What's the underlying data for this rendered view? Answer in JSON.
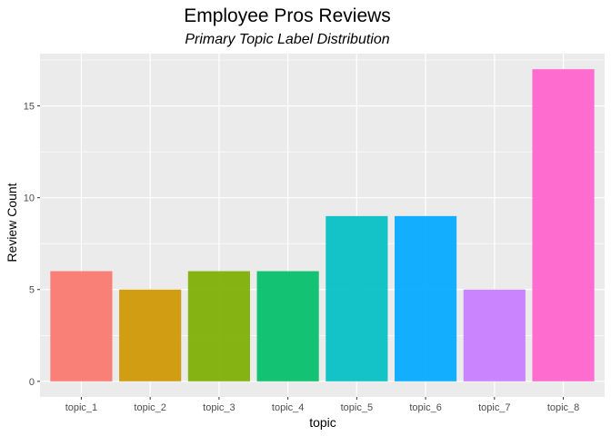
{
  "chart_data": {
    "type": "bar",
    "title": "Employee Pros Reviews",
    "subtitle": "Primary Topic Label Distribution",
    "xlabel": "topic",
    "ylabel": "Review Count",
    "categories": [
      "topic_1",
      "topic_2",
      "topic_3",
      "topic_4",
      "topic_5",
      "topic_6",
      "topic_7",
      "topic_8"
    ],
    "values": [
      6,
      5,
      6,
      6,
      9,
      9,
      5,
      17
    ],
    "colors": [
      "#F8766D",
      "#CD9600",
      "#7CAE00",
      "#00BE67",
      "#00BFC4",
      "#00A9FF",
      "#C77CFF",
      "#FF61CC"
    ],
    "ylim": [
      -0.85,
      17.85
    ],
    "yticks": [
      0,
      5,
      10,
      15
    ],
    "grid": true,
    "legend": "none",
    "panel_background": "#EBEBEB",
    "grid_color": "#FFFFFF"
  }
}
